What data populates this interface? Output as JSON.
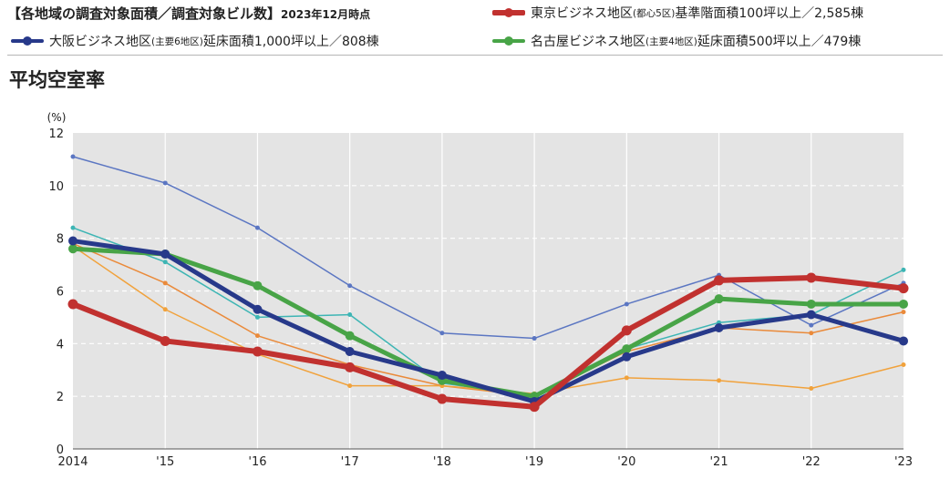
{
  "header": {
    "title": "【各地域の調査対象面積／調査対象ビル数】",
    "date": "2023年12月時点"
  },
  "legend": [
    {
      "prefix": "東京ビジネス地区",
      "small": "(都心5区)",
      "suffix": "基準階面積100坪以上／2,585棟",
      "color": "#c1312f"
    },
    {
      "prefix": "大阪ビジネス地区",
      "small": "(主要6地区)",
      "suffix": "延床面積1,000坪以上／808棟",
      "color": "#27398a"
    },
    {
      "prefix": "名古屋ビジネス地区",
      "small": "(主要4地区)",
      "suffix": "延床面積500坪以上／479棟",
      "color": "#48a447"
    }
  ],
  "chart_title": "平均空室率",
  "chart_data": {
    "type": "line",
    "categories": [
      "2014",
      "'15",
      "'16",
      "'17",
      "'18",
      "'19",
      "'20",
      "'21",
      "'22",
      "'23"
    ],
    "yunit": "(%)",
    "ylim": [
      0,
      12
    ],
    "yticks": [
      0,
      2,
      4,
      6,
      8,
      10,
      12
    ],
    "grid": true,
    "series": [
      {
        "key": "osaka_thin",
        "color": "#5b76c2",
        "width": 1.5,
        "dot": 5,
        "values": [
          11.1,
          10.1,
          8.4,
          6.2,
          4.4,
          4.2,
          5.5,
          6.6,
          4.7,
          6.3
        ]
      },
      {
        "key": "teal_thin",
        "color": "#3db5b4",
        "width": 1.5,
        "dot": 5,
        "values": [
          8.4,
          7.1,
          5.0,
          5.1,
          2.5,
          2.0,
          3.8,
          4.8,
          5.1,
          6.8
        ]
      },
      {
        "key": "orange_a",
        "color": "#ea8a3a",
        "width": 1.5,
        "dot": 5,
        "values": [
          7.8,
          6.3,
          4.3,
          3.2,
          2.4,
          2.0,
          3.7,
          4.6,
          4.4,
          5.2
        ]
      },
      {
        "key": "orange_b",
        "color": "#f1a23c",
        "width": 1.5,
        "dot": 5,
        "values": [
          7.7,
          5.3,
          3.6,
          2.4,
          2.4,
          2.1,
          2.7,
          2.6,
          2.3,
          3.2
        ]
      },
      {
        "name": "名古屋ビジネス地区",
        "color": "#48a447",
        "width": 5,
        "dot": 10,
        "values": [
          7.6,
          7.4,
          6.2,
          4.3,
          2.6,
          2.0,
          3.8,
          5.7,
          5.5,
          5.5
        ]
      },
      {
        "name": "大阪ビジネス地区",
        "color": "#27398a",
        "width": 5,
        "dot": 10,
        "values": [
          7.9,
          7.4,
          5.3,
          3.7,
          2.8,
          1.8,
          3.5,
          4.6,
          5.1,
          4.1
        ]
      },
      {
        "name": "東京ビジネス地区",
        "color": "#c1312f",
        "width": 6,
        "dot": 11,
        "values": [
          5.5,
          4.1,
          3.7,
          3.1,
          1.9,
          1.6,
          4.5,
          6.4,
          6.5,
          6.1
        ]
      }
    ]
  }
}
